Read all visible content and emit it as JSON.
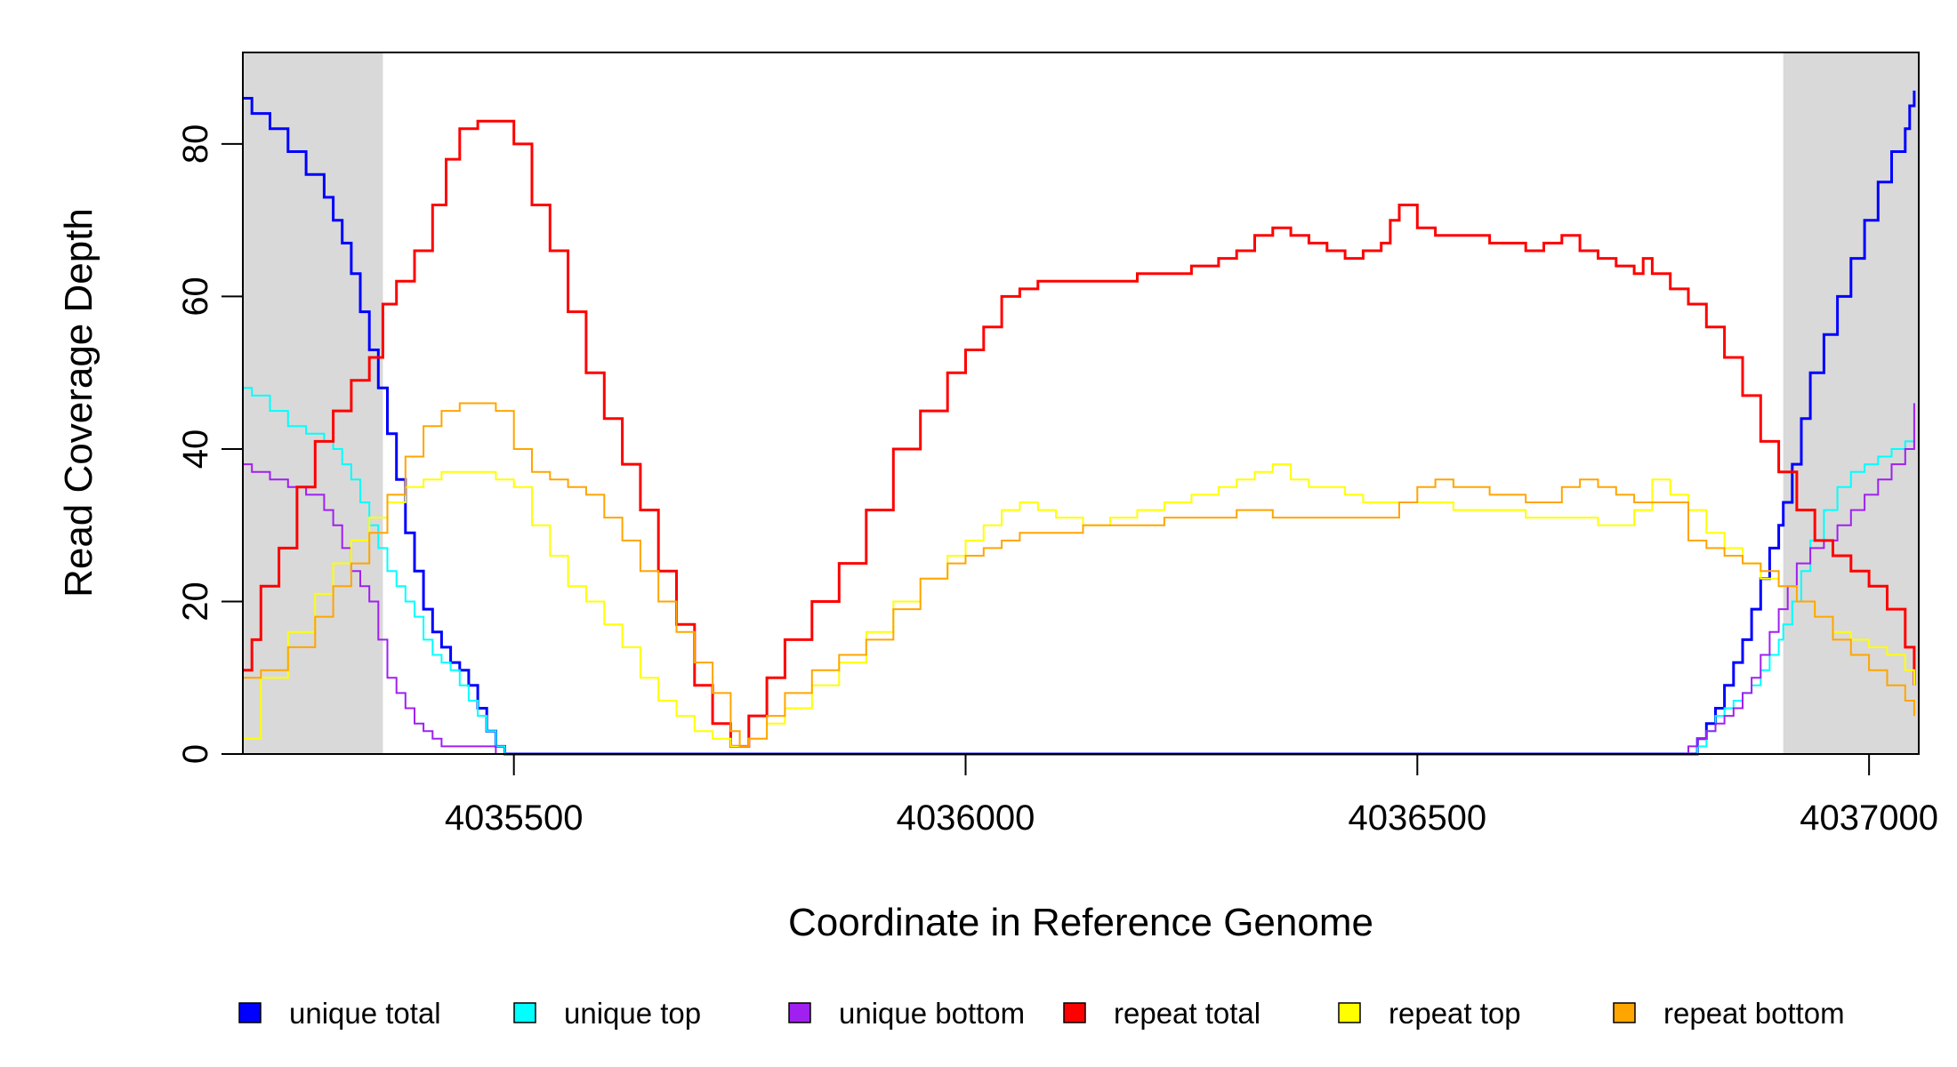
{
  "chart_data": {
    "type": "line",
    "title": "",
    "xlabel": "Coordinate in Reference Genome",
    "ylabel": "Read Coverage Depth",
    "xlim": [
      4035200,
      4037055
    ],
    "ylim": [
      0,
      92
    ],
    "xticks": [
      4035500,
      4036000,
      4036500,
      4037000
    ],
    "xtick_labels": [
      "4035500",
      "4036000",
      "4036500",
      "4037000"
    ],
    "yticks": [
      0,
      20,
      40,
      60,
      80
    ],
    "ytick_labels": [
      "0",
      "20",
      "40",
      "60",
      "80"
    ],
    "grid": false,
    "legend_position": "bottom",
    "shaded_regions": [
      {
        "x0": 4035200,
        "x1": 4035355,
        "color": "#d9d9d9"
      },
      {
        "x0": 4036905,
        "x1": 4037055,
        "color": "#d9d9d9"
      }
    ],
    "series": [
      {
        "name": "unique total",
        "color": "#0000ff",
        "width": 3,
        "x": [
          4035200,
          4035210,
          4035230,
          4035250,
          4035270,
          4035290,
          4035300,
          4035310,
          4035320,
          4035330,
          4035340,
          4035350,
          4035360,
          4035370,
          4035380,
          4035390,
          4035400,
          4035410,
          4035420,
          4035430,
          4035440,
          4035450,
          4035460,
          4035470,
          4035480,
          4035490,
          4035500,
          4036800,
          4036810,
          4036820,
          4036830,
          4036840,
          4036850,
          4036860,
          4036870,
          4036880,
          4036890,
          4036900,
          4036905,
          4036915,
          4036925,
          4036935,
          4036950,
          4036965,
          4036980,
          4036995,
          4037010,
          4037025,
          4037040,
          4037045,
          4037050
        ],
        "y": [
          86,
          84,
          82,
          79,
          76,
          73,
          70,
          67,
          63,
          58,
          53,
          48,
          42,
          36,
          29,
          24,
          19,
          16,
          14,
          12,
          11,
          9,
          6,
          3,
          1,
          0,
          0,
          0,
          2,
          4,
          6,
          9,
          12,
          15,
          19,
          23,
          27,
          30,
          33,
          38,
          44,
          50,
          55,
          60,
          65,
          70,
          75,
          79,
          82,
          85,
          87
        ]
      },
      {
        "name": "unique top",
        "color": "#00ffff",
        "width": 2,
        "x": [
          4035200,
          4035210,
          4035230,
          4035250,
          4035270,
          4035290,
          4035300,
          4035310,
          4035320,
          4035330,
          4035340,
          4035350,
          4035360,
          4035370,
          4035380,
          4035390,
          4035400,
          4035410,
          4035420,
          4035430,
          4035440,
          4035450,
          4035460,
          4035470,
          4035480,
          4035490,
          4035500,
          4036800,
          4036810,
          4036820,
          4036830,
          4036840,
          4036850,
          4036860,
          4036870,
          4036880,
          4036890,
          4036900,
          4036905,
          4036915,
          4036925,
          4036935,
          4036950,
          4036965,
          4036980,
          4036995,
          4037010,
          4037025,
          4037040,
          4037050
        ],
        "y": [
          48,
          47,
          45,
          43,
          42,
          41,
          40,
          38,
          36,
          33,
          30,
          27,
          24,
          22,
          20,
          18,
          15,
          13,
          12,
          11,
          9,
          7,
          5,
          3,
          1,
          0,
          0,
          0,
          1,
          3,
          5,
          6,
          7,
          8,
          9,
          11,
          13,
          15,
          17,
          20,
          24,
          28,
          32,
          35,
          37,
          38,
          39,
          40,
          41,
          41
        ]
      },
      {
        "name": "unique bottom",
        "color": "#a020f0",
        "width": 2,
        "x": [
          4035200,
          4035210,
          4035230,
          4035250,
          4035270,
          4035290,
          4035300,
          4035310,
          4035320,
          4035330,
          4035340,
          4035350,
          4035360,
          4035370,
          4035380,
          4035390,
          4035400,
          4035410,
          4035420,
          4035430,
          4035440,
          4035450,
          4035460,
          4035470,
          4035480,
          4035490,
          4035500,
          4036780,
          4036790,
          4036800,
          4036810,
          4036820,
          4036830,
          4036840,
          4036850,
          4036860,
          4036870,
          4036880,
          4036890,
          4036900,
          4036910,
          4036920,
          4036935,
          4036950,
          4036965,
          4036980,
          4036995,
          4037010,
          4037025,
          4037040,
          4037050
        ],
        "y": [
          38,
          37,
          36,
          35,
          34,
          32,
          30,
          27,
          24,
          22,
          20,
          15,
          10,
          8,
          6,
          4,
          3,
          2,
          1,
          1,
          1,
          1,
          1,
          1,
          0,
          0,
          0,
          0,
          0,
          1,
          2,
          3,
          4,
          5,
          6,
          8,
          10,
          13,
          16,
          19,
          22,
          25,
          27,
          28,
          30,
          32,
          34,
          36,
          38,
          40,
          46
        ]
      },
      {
        "name": "repeat total",
        "color": "#ff0000",
        "width": 3,
        "x": [
          4035200,
          4035210,
          4035220,
          4035240,
          4035260,
          4035280,
          4035300,
          4035320,
          4035340,
          4035355,
          4035370,
          4035390,
          4035410,
          4035425,
          4035440,
          4035460,
          4035480,
          4035500,
          4035520,
          4035540,
          4035560,
          4035580,
          4035600,
          4035620,
          4035640,
          4035660,
          4035680,
          4035700,
          4035720,
          4035740,
          4035750,
          4035760,
          4035780,
          4035800,
          4035830,
          4035860,
          4035890,
          4035920,
          4035950,
          4035980,
          4036000,
          4036020,
          4036040,
          4036060,
          4036080,
          4036100,
          4036130,
          4036160,
          4036190,
          4036220,
          4036250,
          4036280,
          4036300,
          4036320,
          4036340,
          4036360,
          4036380,
          4036400,
          4036420,
          4036440,
          4036460,
          4036470,
          4036480,
          4036500,
          4036520,
          4036540,
          4036560,
          4036580,
          4036600,
          4036620,
          4036640,
          4036660,
          4036680,
          4036700,
          4036720,
          4036740,
          4036750,
          4036760,
          4036780,
          4036800,
          4036820,
          4036840,
          4036860,
          4036880,
          4036900,
          4036920,
          4036940,
          4036960,
          4036980,
          4037000,
          4037020,
          4037040,
          4037050
        ],
        "y": [
          11,
          15,
          22,
          27,
          35,
          41,
          45,
          49,
          52,
          59,
          62,
          66,
          72,
          78,
          82,
          83,
          83,
          80,
          72,
          66,
          58,
          50,
          44,
          38,
          32,
          24,
          17,
          9,
          4,
          1,
          1,
          5,
          10,
          15,
          20,
          25,
          32,
          40,
          45,
          50,
          53,
          56,
          60,
          61,
          62,
          62,
          62,
          62,
          63,
          63,
          64,
          65,
          66,
          68,
          69,
          68,
          67,
          66,
          65,
          66,
          67,
          70,
          72,
          69,
          68,
          68,
          68,
          67,
          67,
          66,
          67,
          68,
          66,
          65,
          64,
          63,
          65,
          63,
          61,
          59,
          56,
          52,
          47,
          41,
          37,
          32,
          28,
          26,
          24,
          22,
          19,
          14,
          9
        ]
      },
      {
        "name": "repeat top",
        "color": "#ffff00",
        "width": 2,
        "x": [
          4035200,
          4035220,
          4035250,
          4035280,
          4035300,
          4035320,
          4035340,
          4035360,
          4035380,
          4035400,
          4035420,
          4035440,
          4035460,
          4035480,
          4035500,
          4035520,
          4035540,
          4035560,
          4035580,
          4035600,
          4035620,
          4035640,
          4035660,
          4035680,
          4035700,
          4035720,
          4035740,
          4035750,
          4035760,
          4035780,
          4035800,
          4035830,
          4035860,
          4035890,
          4035920,
          4035950,
          4035980,
          4036000,
          4036020,
          4036040,
          4036060,
          4036080,
          4036100,
          4036130,
          4036160,
          4036190,
          4036220,
          4036250,
          4036280,
          4036300,
          4036320,
          4036340,
          4036360,
          4036380,
          4036400,
          4036420,
          4036440,
          4036460,
          4036480,
          4036500,
          4036520,
          4036540,
          4036560,
          4036580,
          4036600,
          4036620,
          4036640,
          4036660,
          4036680,
          4036700,
          4036720,
          4036740,
          4036760,
          4036780,
          4036800,
          4036820,
          4036840,
          4036860,
          4036880,
          4036900,
          4036920,
          4036940,
          4036960,
          4036980,
          4037000,
          4037020,
          4037040,
          4037050
        ],
        "y": [
          2,
          10,
          16,
          21,
          25,
          28,
          31,
          33,
          35,
          36,
          37,
          37,
          37,
          36,
          35,
          30,
          26,
          22,
          20,
          17,
          14,
          10,
          7,
          5,
          3,
          2,
          1,
          1,
          2,
          4,
          6,
          9,
          12,
          16,
          20,
          23,
          26,
          28,
          30,
          32,
          33,
          32,
          31,
          30,
          31,
          32,
          33,
          34,
          35,
          36,
          37,
          38,
          36,
          35,
          35,
          34,
          33,
          33,
          33,
          33,
          33,
          32,
          32,
          32,
          32,
          31,
          31,
          31,
          31,
          30,
          30,
          32,
          36,
          34,
          32,
          29,
          27,
          25,
          23,
          22,
          20,
          18,
          16,
          15,
          14,
          13,
          11,
          9
        ]
      },
      {
        "name": "repeat bottom",
        "color": "#ffa500",
        "width": 2,
        "x": [
          4035200,
          4035220,
          4035250,
          4035280,
          4035300,
          4035320,
          4035340,
          4035360,
          4035380,
          4035400,
          4035420,
          4035440,
          4035460,
          4035480,
          4035500,
          4035520,
          4035540,
          4035560,
          4035580,
          4035600,
          4035620,
          4035640,
          4035660,
          4035680,
          4035700,
          4035720,
          4035740,
          4035750,
          4035760,
          4035780,
          4035800,
          4035830,
          4035860,
          4035890,
          4035920,
          4035950,
          4035980,
          4036000,
          4036020,
          4036040,
          4036060,
          4036080,
          4036100,
          4036130,
          4036160,
          4036190,
          4036220,
          4036250,
          4036280,
          4036300,
          4036320,
          4036340,
          4036360,
          4036380,
          4036400,
          4036420,
          4036440,
          4036460,
          4036480,
          4036500,
          4036520,
          4036540,
          4036560,
          4036580,
          4036600,
          4036620,
          4036640,
          4036660,
          4036680,
          4036700,
          4036720,
          4036740,
          4036760,
          4036780,
          4036800,
          4036820,
          4036840,
          4036860,
          4036880,
          4036900,
          4036920,
          4036940,
          4036960,
          4036980,
          4037000,
          4037020,
          4037040,
          4037050
        ],
        "y": [
          10,
          11,
          14,
          18,
          22,
          25,
          29,
          34,
          39,
          43,
          45,
          46,
          46,
          45,
          40,
          37,
          36,
          35,
          34,
          31,
          28,
          24,
          20,
          16,
          12,
          8,
          3,
          1,
          2,
          5,
          8,
          11,
          13,
          15,
          19,
          23,
          25,
          26,
          27,
          28,
          29,
          29,
          29,
          30,
          30,
          30,
          31,
          31,
          31,
          32,
          32,
          31,
          31,
          31,
          31,
          31,
          31,
          31,
          33,
          35,
          36,
          35,
          35,
          34,
          34,
          33,
          33,
          35,
          36,
          35,
          34,
          33,
          33,
          33,
          28,
          27,
          26,
          25,
          24,
          22,
          20,
          18,
          15,
          13,
          11,
          9,
          7,
          5
        ]
      }
    ],
    "legend": [
      {
        "label": "unique total",
        "color": "#0000ff"
      },
      {
        "label": "unique top",
        "color": "#00ffff"
      },
      {
        "label": "unique bottom",
        "color": "#a020f0"
      },
      {
        "label": "repeat total",
        "color": "#ff0000"
      },
      {
        "label": "repeat top",
        "color": "#ffff00"
      },
      {
        "label": "repeat bottom",
        "color": "#ffa500"
      }
    ]
  }
}
